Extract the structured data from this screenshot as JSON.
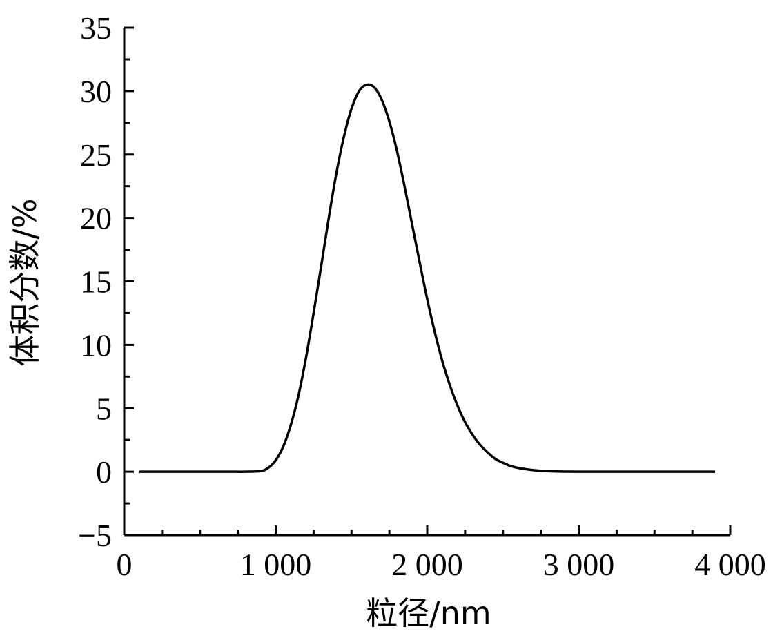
{
  "chart_data": {
    "type": "line",
    "title": "",
    "xlabel": "粒径/nm",
    "ylabel": "体积分数/%",
    "xlim": [
      0,
      4000
    ],
    "ylim": [
      -5,
      35
    ],
    "x_ticks": [
      0,
      1000,
      2000,
      3000,
      4000
    ],
    "x_tick_labels": [
      "0",
      "1 000",
      "2 000",
      "3 000",
      "4 000"
    ],
    "x_minor_step": 250,
    "y_ticks": [
      -5,
      0,
      5,
      10,
      15,
      20,
      25,
      30,
      35
    ],
    "y_tick_labels": [
      "−5",
      "0",
      "5",
      "10",
      "15",
      "20",
      "25",
      "30",
      "35"
    ],
    "y_minor_step": 2.5,
    "grid": false,
    "legend": "none",
    "series": [
      {
        "color": "#000000",
        "x": [
          100,
          300,
          500,
          700,
          800,
          900,
          950,
          1000,
          1050,
          1100,
          1150,
          1200,
          1250,
          1300,
          1350,
          1400,
          1450,
          1500,
          1550,
          1600,
          1650,
          1700,
          1750,
          1800,
          1850,
          1900,
          1950,
          2000,
          2050,
          2100,
          2150,
          2200,
          2250,
          2300,
          2350,
          2400,
          2450,
          2500,
          2550,
          2600,
          2700,
          2800,
          2900,
          3000,
          3200,
          3500,
          3800,
          3900
        ],
        "y": [
          0,
          0,
          0,
          0,
          0,
          0.05,
          0.3,
          0.9,
          2.0,
          3.7,
          6.0,
          9.0,
          12.5,
          16.2,
          20.0,
          23.5,
          26.4,
          28.6,
          30.0,
          30.5,
          30.3,
          29.3,
          27.6,
          25.3,
          22.5,
          19.5,
          16.5,
          13.6,
          11.0,
          8.7,
          6.8,
          5.2,
          3.9,
          2.9,
          2.1,
          1.5,
          1.0,
          0.7,
          0.45,
          0.3,
          0.12,
          0.04,
          0.01,
          0,
          0,
          0,
          0,
          0
        ]
      }
    ]
  }
}
